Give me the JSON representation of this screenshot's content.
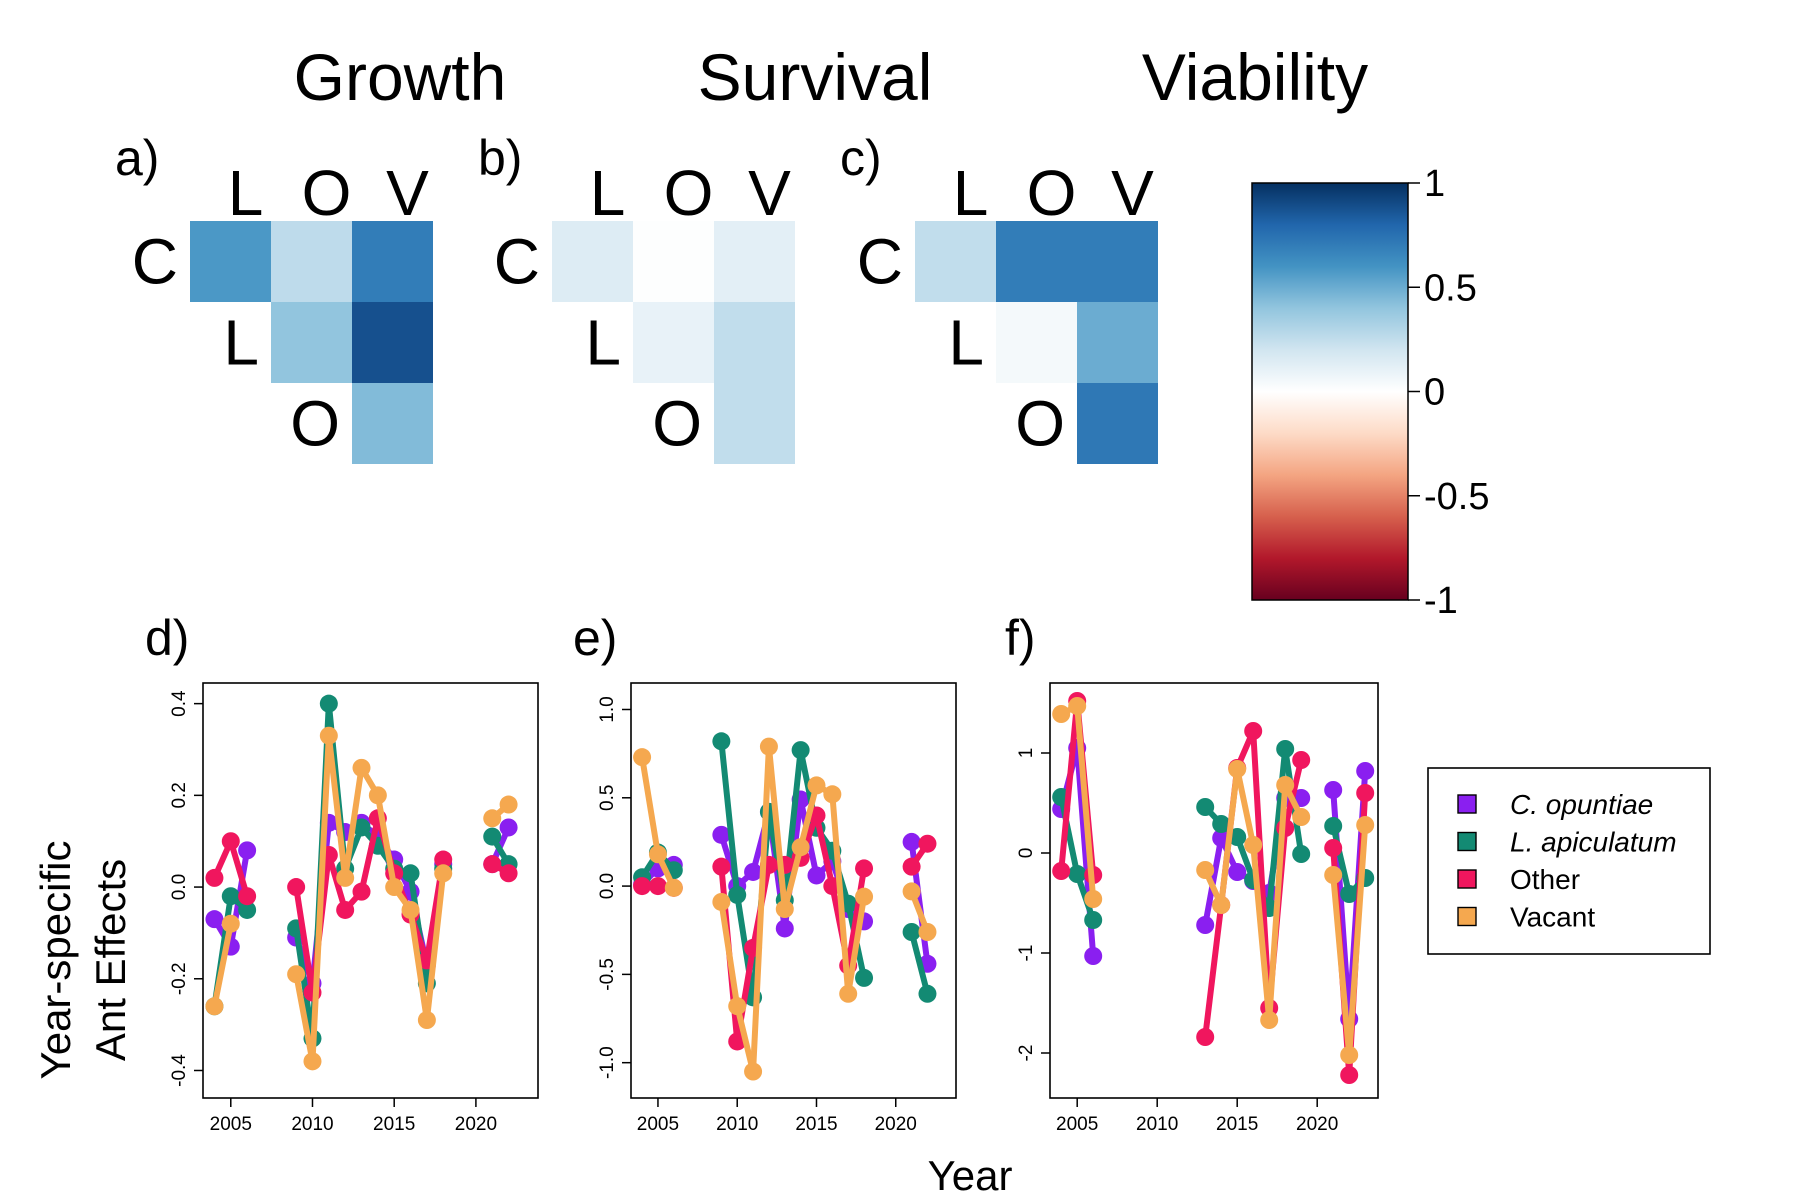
{
  "titles": [
    "Growth",
    "Survival",
    "Viability"
  ],
  "matrix_panels": [
    {
      "letter": "a)",
      "col_labels": [
        "L",
        "O",
        "V"
      ],
      "row_labels": [
        "C",
        "L",
        "O"
      ],
      "values": [
        [
          0.58,
          0.26,
          0.7
        ],
        [
          null,
          0.4,
          0.88
        ],
        [
          null,
          null,
          0.44
        ]
      ]
    },
    {
      "letter": "b)",
      "col_labels": [
        "L",
        "O",
        "V"
      ],
      "row_labels": [
        "C",
        "L",
        "O"
      ],
      "values": [
        [
          0.15,
          0.01,
          0.12
        ],
        [
          null,
          0.1,
          0.25
        ],
        [
          null,
          null,
          0.25
        ]
      ]
    },
    {
      "letter": "c)",
      "col_labels": [
        "L",
        "O",
        "V"
      ],
      "row_labels": [
        "C",
        "L",
        "O"
      ],
      "values": [
        [
          0.25,
          0.7,
          0.7
        ],
        [
          null,
          0.05,
          0.5
        ],
        [
          null,
          null,
          0.72
        ]
      ]
    }
  ],
  "colorbar": {
    "ticks": [
      "1",
      "0.5",
      "0",
      "-0.5",
      "-1"
    ],
    "values": [
      1,
      0.5,
      0,
      -0.5,
      -1
    ],
    "stops": [
      "#67001f",
      "#b2182b",
      "#d6604d",
      "#f4a582",
      "#fddbc7",
      "#ffffff",
      "#d1e5f0",
      "#92c5de",
      "#4393c3",
      "#2166ac",
      "#053061"
    ]
  },
  "line_panels": [
    {
      "letter": "d)",
      "xticks": [
        "2005",
        "2010",
        "2015",
        "2020"
      ],
      "yticks": [
        "-0.4",
        "-0.2",
        "0.0",
        "0.2",
        "0.4"
      ]
    },
    {
      "letter": "e)",
      "xticks": [
        "2005",
        "2010",
        "2015",
        "2020"
      ],
      "yticks": [
        "-1.0",
        "-0.5",
        "0.0",
        "0.5",
        "1.0"
      ]
    },
    {
      "letter": "f)",
      "xticks": [
        "2005",
        "2010",
        "2015",
        "2020"
      ],
      "yticks": [
        "-2",
        "-1",
        "0",
        "1"
      ]
    }
  ],
  "axes": {
    "ylabel_line1": "Year-specific",
    "ylabel_line2": "Ant Effects",
    "xlabel": "Year"
  },
  "legend": [
    {
      "label": "C. opuntiae",
      "color": "#8a1ff0",
      "italic": true
    },
    {
      "label": "L. apiculatum",
      "color": "#138a73",
      "italic": true
    },
    {
      "label": "Other",
      "color": "#f0165e",
      "italic": false
    },
    {
      "label": "Vacant",
      "color": "#f5a84f",
      "italic": false
    }
  ],
  "chart_data": [
    {
      "type": "line",
      "panel": "d)",
      "title": "Growth",
      "x": [
        2004,
        2005,
        2006,
        2009,
        2010,
        2011,
        2012,
        2013,
        2014,
        2015,
        2016,
        2017,
        2018,
        2021,
        2022
      ],
      "xlim": [
        2003.3,
        2023.8
      ],
      "ylim": [
        -0.46,
        0.445
      ],
      "xlabel": "Year",
      "ylabel": "Year-specific Ant Effects",
      "series": [
        {
          "name": "C. opuntiae",
          "values": [
            -0.07,
            -0.13,
            0.08,
            -0.11,
            -0.21,
            0.14,
            0.12,
            0.14,
            0.11,
            0.06,
            -0.01,
            -0.17,
            0.05,
            0.05,
            0.13
          ]
        },
        {
          "name": "L. apiculatum",
          "values": [
            -0.26,
            -0.02,
            -0.05,
            -0.09,
            -0.33,
            0.4,
            0.04,
            0.13,
            0.09,
            0.04,
            0.03,
            -0.21,
            0.04,
            0.11,
            0.05
          ]
        },
        {
          "name": "Other",
          "values": [
            0.02,
            0.1,
            -0.02,
            0.0,
            -0.23,
            0.07,
            -0.05,
            -0.01,
            0.15,
            0.03,
            -0.06,
            -0.16,
            0.06,
            0.05,
            0.03
          ]
        },
        {
          "name": "Vacant",
          "values": [
            -0.26,
            -0.08,
            null,
            -0.19,
            -0.38,
            0.33,
            0.02,
            0.26,
            0.2,
            0.0,
            -0.05,
            -0.29,
            0.03,
            0.15,
            0.18
          ]
        }
      ]
    },
    {
      "type": "line",
      "panel": "e)",
      "title": "Survival",
      "x": [
        2004,
        2005,
        2006,
        2009,
        2010,
        2011,
        2012,
        2013,
        2014,
        2015,
        2016,
        2017,
        2018,
        2021,
        2022
      ],
      "xlim": [
        2003.3,
        2023.8
      ],
      "ylim": [
        -1.2,
        1.15
      ],
      "xlabel": "Year",
      "ylabel": "Year-specific Ant Effects",
      "series": [
        {
          "name": "C. opuntiae",
          "values": [
            0.01,
            0.1,
            0.12,
            0.29,
            0.0,
            0.08,
            0.42,
            -0.24,
            0.49,
            0.06,
            0.14,
            -0.13,
            -0.2,
            0.25,
            -0.44
          ]
        },
        {
          "name": "L. apiculatum",
          "values": [
            0.05,
            0.19,
            0.09,
            0.82,
            -0.05,
            -0.63,
            0.42,
            -0.08,
            0.77,
            0.33,
            0.2,
            -0.1,
            -0.52,
            -0.26,
            -0.61
          ]
        },
        {
          "name": "Other",
          "values": [
            0.0,
            0.0,
            -0.01,
            0.11,
            -0.88,
            -0.35,
            0.12,
            0.12,
            0.16,
            0.4,
            0.0,
            -0.45,
            0.1,
            0.11,
            0.24
          ]
        },
        {
          "name": "Vacant",
          "values": [
            0.73,
            0.18,
            -0.01,
            -0.09,
            -0.68,
            -1.05,
            0.79,
            -0.13,
            0.22,
            0.57,
            0.52,
            -0.61,
            -0.06,
            -0.03,
            -0.26
          ]
        }
      ]
    },
    {
      "type": "line",
      "panel": "f)",
      "title": "Viability",
      "x": [
        2004,
        2005,
        2006,
        2013,
        2014,
        2015,
        2016,
        2017,
        2018,
        2019,
        2021,
        2022,
        2023
      ],
      "xlim": [
        2003.3,
        2023.8
      ],
      "ylim": [
        -2.45,
        1.7
      ],
      "xlabel": "Year",
      "ylabel": "Year-specific Ant Effects",
      "series": [
        {
          "name": "C. opuntiae",
          "values": [
            0.44,
            1.05,
            -1.03,
            -0.72,
            0.15,
            -0.19,
            -0.28,
            -0.4,
            0.55,
            0.55,
            0.63,
            -1.66,
            0.82
          ]
        },
        {
          "name": "L. apiculatum",
          "values": [
            0.56,
            -0.21,
            -0.67,
            0.46,
            0.29,
            0.16,
            -0.27,
            -0.55,
            1.04,
            -0.01,
            0.27,
            -0.41,
            -0.25
          ]
        },
        {
          "name": "Other",
          "values": [
            -0.18,
            1.52,
            -0.22,
            -1.84,
            -0.52,
            0.85,
            1.22,
            -1.55,
            0.25,
            0.93,
            0.05,
            -2.22,
            0.6
          ]
        },
        {
          "name": "Vacant",
          "values": [
            1.39,
            1.47,
            -0.46,
            -0.17,
            -0.52,
            0.84,
            0.08,
            -1.67,
            0.68,
            0.36,
            -0.22,
            -2.02,
            0.28
          ]
        }
      ]
    }
  ]
}
